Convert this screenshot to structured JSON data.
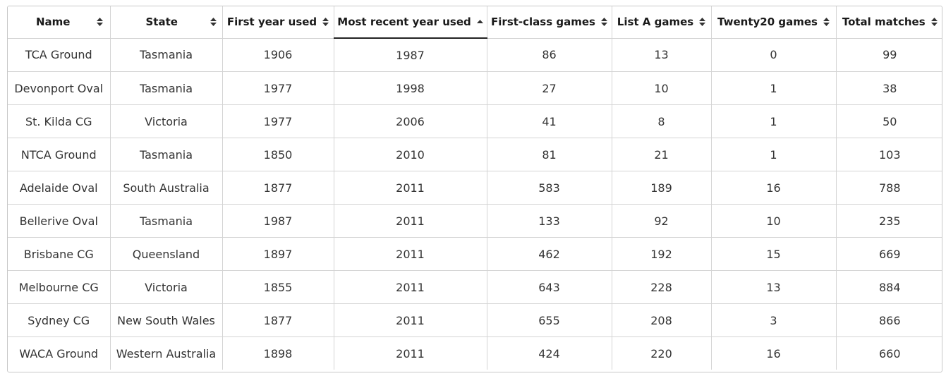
{
  "table": {
    "columns": [
      {
        "label": "Name",
        "sort": "none"
      },
      {
        "label": "State",
        "sort": "none"
      },
      {
        "label": "First year used",
        "sort": "none"
      },
      {
        "label": "Most recent year used",
        "sort": "ascending"
      },
      {
        "label": "First-class games",
        "sort": "none"
      },
      {
        "label": "List A games",
        "sort": "none"
      },
      {
        "label": "Twenty20 games",
        "sort": "none"
      },
      {
        "label": "Total matches",
        "sort": "none"
      }
    ],
    "rows": [
      [
        "TCA Ground",
        "Tasmania",
        "1906",
        "1987",
        "86",
        "13",
        "0",
        "99"
      ],
      [
        "Devonport Oval",
        "Tasmania",
        "1977",
        "1998",
        "27",
        "10",
        "1",
        "38"
      ],
      [
        "St. Kilda CG",
        "Victoria",
        "1977",
        "2006",
        "41",
        "8",
        "1",
        "50"
      ],
      [
        "NTCA Ground",
        "Tasmania",
        "1850",
        "2010",
        "81",
        "21",
        "1",
        "103"
      ],
      [
        "Adelaide Oval",
        "South Australia",
        "1877",
        "2011",
        "583",
        "189",
        "16",
        "788"
      ],
      [
        "Bellerive Oval",
        "Tasmania",
        "1987",
        "2011",
        "133",
        "92",
        "10",
        "235"
      ],
      [
        "Brisbane CG",
        "Queensland",
        "1897",
        "2011",
        "462",
        "192",
        "15",
        "669"
      ],
      [
        "Melbourne CG",
        "Victoria",
        "1855",
        "2011",
        "643",
        "228",
        "13",
        "884"
      ],
      [
        "Sydney CG",
        "New South Wales",
        "1877",
        "2011",
        "655",
        "208",
        "3",
        "866"
      ],
      [
        "WACA Ground",
        "Western Australia",
        "1898",
        "2011",
        "424",
        "220",
        "16",
        "660"
      ]
    ]
  },
  "colors": {
    "border": "#d4d4d4",
    "text": "#333333",
    "header_text": "#1a1a1a",
    "active_underline": "#222222"
  }
}
